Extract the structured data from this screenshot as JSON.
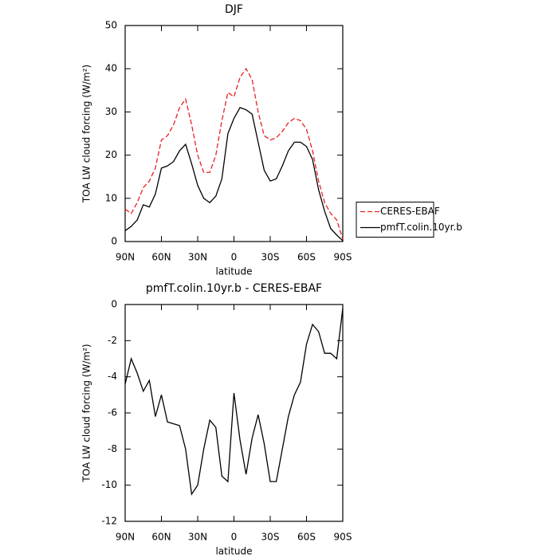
{
  "chart_data": [
    {
      "type": "line",
      "title": "DJF",
      "xlabel": "latitude",
      "ylabel": "TOA LW cloud forcing (W/m²)",
      "x": [
        90,
        85,
        80,
        75,
        70,
        65,
        60,
        55,
        50,
        45,
        40,
        35,
        30,
        25,
        20,
        15,
        10,
        5,
        0,
        -5,
        -10,
        -15,
        -20,
        -25,
        -30,
        -35,
        -40,
        -45,
        -50,
        -55,
        -60,
        -65,
        -70,
        -75,
        -80,
        -85,
        -90
      ],
      "series": [
        {
          "name": "CERES-EBAF",
          "color": "#e8211f",
          "style": "dashed",
          "values": [
            7.5,
            6.5,
            9,
            12.5,
            14,
            17,
            23.5,
            24.5,
            27,
            31,
            33,
            27,
            20,
            16,
            16,
            20,
            28,
            34.5,
            33.5,
            38,
            40,
            37.5,
            30,
            24.5,
            23.5,
            24,
            25.5,
            27.5,
            28.5,
            28,
            26,
            21,
            14,
            9,
            6.5,
            5,
            0.5
          ]
        },
        {
          "name": "pmfT.colin.10yr.b",
          "color": "#000000",
          "style": "solid",
          "values": [
            2.5,
            3.5,
            5,
            8.5,
            8,
            11,
            17,
            17.5,
            18.5,
            21,
            22.5,
            18,
            13,
            10,
            9,
            10.5,
            14.5,
            25,
            28.5,
            31,
            30.5,
            29.5,
            23,
            16.5,
            14,
            14.5,
            17.5,
            21,
            23,
            23,
            22,
            19,
            12,
            7,
            3,
            1.5,
            0.2
          ]
        }
      ],
      "xlim": [
        90,
        -90
      ],
      "xticks": [
        {
          "value": 90,
          "label": "90N"
        },
        {
          "value": 60,
          "label": "60N"
        },
        {
          "value": 30,
          "label": "30N"
        },
        0,
        {
          "value": -30,
          "label": "30S"
        },
        {
          "value": -60,
          "label": "60S"
        },
        {
          "value": -90,
          "label": "90S"
        }
      ],
      "ylim": [
        0,
        50
      ],
      "yticks": [
        0,
        10,
        20,
        30,
        40,
        50
      ],
      "legend": "right"
    },
    {
      "type": "line",
      "title": "pmfT.colin.10yr.b - CERES-EBAF",
      "xlabel": "latitude",
      "ylabel": "TOA LW cloud forcing (W/m²)",
      "x": [
        90,
        85,
        80,
        75,
        70,
        65,
        60,
        55,
        50,
        45,
        40,
        35,
        30,
        25,
        20,
        15,
        10,
        5,
        0,
        -5,
        -10,
        -15,
        -20,
        -25,
        -30,
        -35,
        -40,
        -45,
        -50,
        -55,
        -60,
        -65,
        -70,
        -75,
        -80,
        -85,
        -90
      ],
      "color": "#000000",
      "values": [
        -4.4,
        -3,
        -3.8,
        -4.8,
        -4.2,
        -6.2,
        -5,
        -6.5,
        -6.6,
        -6.7,
        -8,
        -10.5,
        -10,
        -8,
        -6.4,
        -6.8,
        -9.5,
        -9.8,
        -4.9,
        -7.5,
        -9.4,
        -7.4,
        -6.1,
        -7.7,
        -9.8,
        -9.8,
        -8,
        -6.2,
        -5,
        -4.3,
        -2.2,
        -1.1,
        -1.5,
        -2.7,
        -2.7,
        -3,
        -0.2
      ],
      "xlim": [
        90,
        -90
      ],
      "xticks": [
        {
          "value": 90,
          "label": "90N"
        },
        {
          "value": 60,
          "label": "60N"
        },
        {
          "value": 30,
          "label": "30N"
        },
        0,
        {
          "value": -30,
          "label": "30S"
        },
        {
          "value": -60,
          "label": "60S"
        },
        {
          "value": -90,
          "label": "90S"
        }
      ],
      "ylim": [
        -12,
        0
      ],
      "yticks": [
        -12,
        -10,
        -8,
        -6,
        -4,
        -2,
        0
      ]
    }
  ]
}
